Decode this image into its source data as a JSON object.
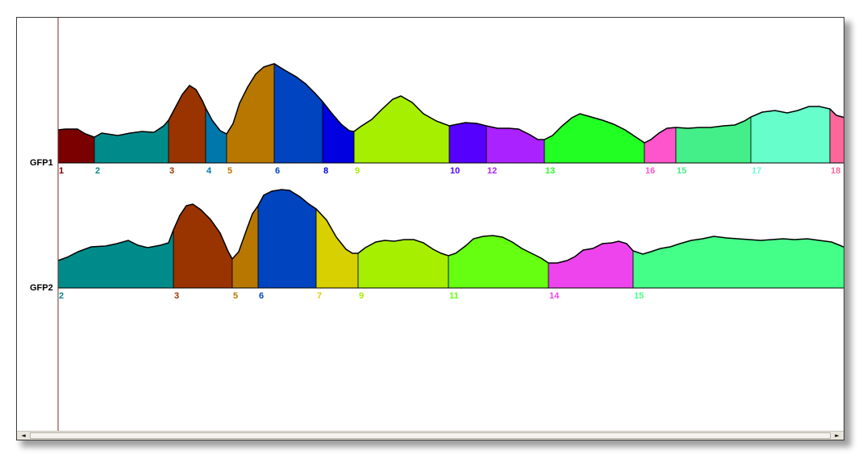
{
  "tracks": [
    {
      "label": "GFP1",
      "segments": [
        {
          "label": "1",
          "color": "#7a0000",
          "label_color": "#7a0000"
        },
        {
          "label": "2",
          "color": "#008b8b",
          "label_color": "#008b8b"
        },
        {
          "label": "3",
          "color": "#993300",
          "label_color": "#993300"
        },
        {
          "label": "4",
          "color": "#0077aa",
          "label_color": "#0077aa"
        },
        {
          "label": "5",
          "color": "#b87800",
          "label_color": "#b87800"
        },
        {
          "label": "6",
          "color": "#0044c0",
          "label_color": "#0044c0"
        },
        {
          "label": "8",
          "color": "#0000e0",
          "label_color": "#0000e0"
        },
        {
          "label": "9",
          "color": "#a6ef00",
          "label_color": "#a6ef00"
        },
        {
          "label": "10",
          "color": "#5500ff",
          "label_color": "#5500ff"
        },
        {
          "label": "12",
          "color": "#aa22ff",
          "label_color": "#aa22ff"
        },
        {
          "label": "13",
          "color": "#22ff22",
          "label_color": "#22ff22"
        },
        {
          "label": "16",
          "color": "#ff55cc",
          "label_color": "#ff55cc"
        },
        {
          "label": "15",
          "color": "#44ee88",
          "label_color": "#44ee88"
        },
        {
          "label": "17",
          "color": "#66ffcc",
          "label_color": "#66ffcc"
        },
        {
          "label": "18",
          "color": "#ff6699",
          "label_color": "#ff6699"
        }
      ]
    },
    {
      "label": "GFP2",
      "segments": [
        {
          "label": "2",
          "color": "#008b8b",
          "label_color": "#008b8b"
        },
        {
          "label": "3",
          "color": "#993300",
          "label_color": "#993300"
        },
        {
          "label": "5",
          "color": "#b87800",
          "label_color": "#b87800"
        },
        {
          "label": "6",
          "color": "#0044c0",
          "label_color": "#0044c0"
        },
        {
          "label": "7",
          "color": "#d8d000",
          "label_color": "#d8d000"
        },
        {
          "label": "9",
          "color": "#a6ef00",
          "label_color": "#a6ef00"
        },
        {
          "label": "11",
          "color": "#66ff11",
          "label_color": "#66ff11"
        },
        {
          "label": "14",
          "color": "#ee44ee",
          "label_color": "#ee44ee"
        },
        {
          "label": "15",
          "color": "#44ff88",
          "label_color": "#44ff88"
        }
      ]
    }
  ],
  "scrollbar": {
    "left_arrow": "◄",
    "right_arrow": "►"
  }
}
